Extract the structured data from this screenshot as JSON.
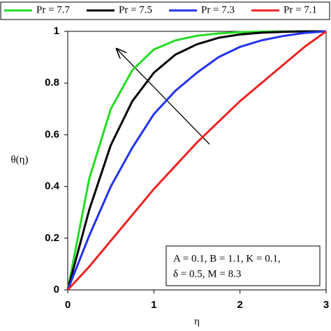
{
  "chart_data": {
    "type": "line",
    "x_label": "η",
    "y_label": "θ(η)",
    "x": [
      0,
      0.25,
      0.5,
      0.75,
      1,
      1.25,
      1.5,
      1.75,
      2,
      2.25,
      2.5,
      2.75,
      3
    ],
    "series": [
      {
        "name": "Pr = 7.7",
        "color": "#22dd22",
        "values": [
          0,
          0.43,
          0.7,
          0.85,
          0.93,
          0.965,
          0.983,
          0.992,
          0.997,
          0.999,
          1,
          1,
          1
        ]
      },
      {
        "name": "Pr = 7.5",
        "color": "#000000",
        "values": [
          0,
          0.31,
          0.56,
          0.73,
          0.84,
          0.91,
          0.95,
          0.975,
          0.988,
          0.995,
          0.998,
          1,
          1
        ]
      },
      {
        "name": "Pr = 7.3",
        "color": "#2233ee",
        "values": [
          0,
          0.21,
          0.4,
          0.55,
          0.68,
          0.77,
          0.84,
          0.9,
          0.94,
          0.965,
          0.982,
          0.994,
          1
        ]
      },
      {
        "name": "Pr = 7.1",
        "color": "#ee2222",
        "values": [
          0,
          0.09,
          0.19,
          0.29,
          0.39,
          0.48,
          0.57,
          0.65,
          0.73,
          0.8,
          0.87,
          0.94,
          1
        ]
      }
    ],
    "xlim": [
      0,
      3
    ],
    "xticks": [
      0,
      1,
      2,
      3
    ],
    "ylim": [
      0,
      1
    ],
    "yticks": [
      0,
      0.2,
      0.4,
      0.6,
      0.8,
      1
    ],
    "annotation": [
      "A = 0.1, B = 1.1, K = 0.1,",
      "δ = 0.5, M = 8.3"
    ]
  }
}
